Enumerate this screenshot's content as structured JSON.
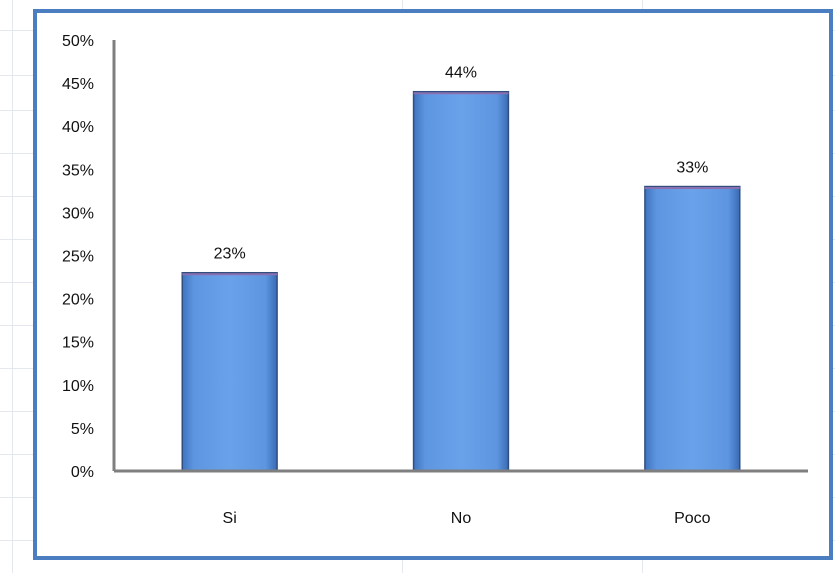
{
  "chart_data": {
    "type": "bar",
    "categories": [
      "Si",
      "No",
      "Poco"
    ],
    "values": [
      23,
      44,
      33
    ],
    "data_labels": [
      "23%",
      "44%",
      "33%"
    ],
    "ylim": [
      0,
      50
    ],
    "yticks": [
      "0%",
      "5%",
      "10%",
      "15%",
      "20%",
      "25%",
      "30%",
      "35%",
      "40%",
      "45%",
      "50%"
    ],
    "title": "",
    "xlabel": "",
    "ylabel": "",
    "grid": false,
    "legend": "none",
    "bar_color": "#5b93df",
    "bar_edge_color": "#2f4f80",
    "axis_color": "#7f7f7f",
    "frame_color": "#4a7ec0"
  }
}
